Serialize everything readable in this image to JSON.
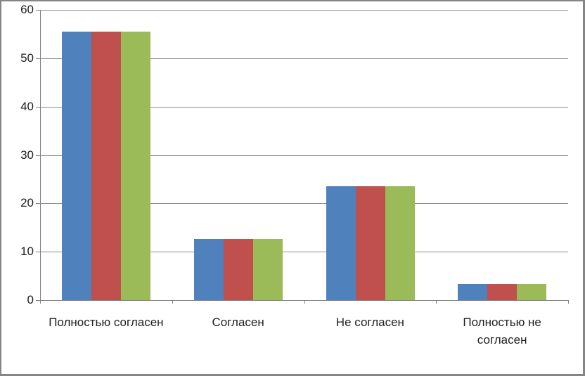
{
  "chart_data": {
    "type": "bar",
    "title": "",
    "xlabel": "",
    "ylabel": "",
    "categories": [
      "Полностью согласен",
      "Согласен",
      "Не согласен",
      "Полностью не согласен"
    ],
    "series": [
      {
        "color": "#4F81BD",
        "values": [
          55.5,
          12.6,
          23.5,
          3.4
        ]
      },
      {
        "color": "#C0504D",
        "values": [
          55.5,
          12.6,
          23.5,
          3.4
        ]
      },
      {
        "color": "#9BBB59",
        "values": [
          55.5,
          12.6,
          23.5,
          3.4
        ]
      }
    ],
    "ylim": [
      0,
      60
    ],
    "ytick_step": 10,
    "ytick_labels": [
      "0",
      "10",
      "20",
      "30",
      "40",
      "50",
      "60"
    ],
    "grid": true,
    "legend": "none"
  },
  "colors": {
    "background": "#FFFFFF",
    "border": "#858585",
    "axis": "#808080",
    "gridline": "#8A8A8A",
    "text": "#1F1F1F"
  }
}
